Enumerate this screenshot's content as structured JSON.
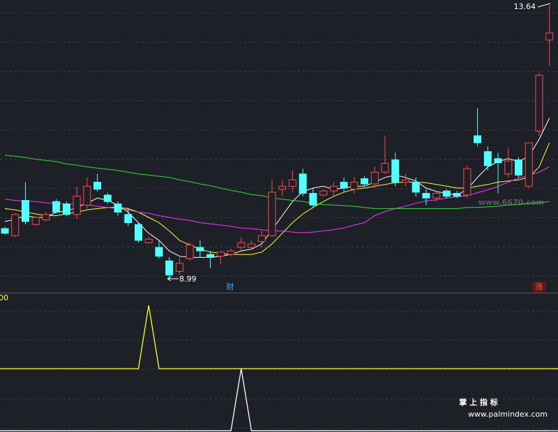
{
  "chart_data": {
    "type": "candlestick",
    "up_color": "#ff4a4a",
    "down_color": "#54ffff",
    "ylim": [
      8.75,
      13.73
    ],
    "candles": {
      "open": [
        9.84,
        9.72,
        10.32,
        9.91,
        9.99,
        10.3,
        10.26,
        10.08,
        10.24,
        10.63,
        10.41,
        10.26,
        10.08,
        9.91,
        9.6,
        9.52,
        9.29,
        9.11,
        9.33,
        9.52,
        9.4,
        9.37,
        9.4,
        9.52,
        9.52,
        9.62,
        9.72,
        10.51,
        10.56,
        10.77,
        10.44,
        10.41,
        10.48,
        10.63,
        10.51,
        10.69,
        10.6,
        10.8,
        11.01,
        10.63,
        10.63,
        10.44,
        10.36,
        10.48,
        10.44,
        10.41,
        11.42,
        11.15,
        11.03,
        10.77,
        11.01,
        10.56,
        11.5,
        13.05
      ],
      "high": [
        9.87,
        10.1,
        10.63,
        10.06,
        10.12,
        10.34,
        10.3,
        10.56,
        10.71,
        10.77,
        10.45,
        10.3,
        10.18,
        9.94,
        9.7,
        9.64,
        9.35,
        9.35,
        9.6,
        9.64,
        9.46,
        9.46,
        9.5,
        9.7,
        9.64,
        9.8,
        10.67,
        10.67,
        10.83,
        10.86,
        10.53,
        10.51,
        10.63,
        10.71,
        10.71,
        10.73,
        10.89,
        11.42,
        11.13,
        10.77,
        10.71,
        10.51,
        10.48,
        10.51,
        10.48,
        10.91,
        11.89,
        11.24,
        11.13,
        11.22,
        11.05,
        11.3,
        12.49,
        13.64
      ],
      "low": [
        9.74,
        9.7,
        9.91,
        9.89,
        9.96,
        10.1,
        10.05,
        10.0,
        10.18,
        10.47,
        10.26,
        10.06,
        9.88,
        9.6,
        9.58,
        9.33,
        8.99,
        9.05,
        9.29,
        9.35,
        9.17,
        9.23,
        9.37,
        9.46,
        9.48,
        9.52,
        9.7,
        10.39,
        10.47,
        10.39,
        10.2,
        10.39,
        10.39,
        10.47,
        10.44,
        10.56,
        10.53,
        10.77,
        10.56,
        10.56,
        10.39,
        10.24,
        10.3,
        10.36,
        10.36,
        10.36,
        11.24,
        10.83,
        10.44,
        10.71,
        10.71,
        10.53,
        11.42,
        12.61
      ],
      "close": [
        9.76,
        10.08,
        9.96,
        10.03,
        10.08,
        10.12,
        10.08,
        10.39,
        10.56,
        10.51,
        10.3,
        10.12,
        9.94,
        9.64,
        9.66,
        9.37,
        9.05,
        9.25,
        9.56,
        9.46,
        9.35,
        9.44,
        9.46,
        9.6,
        9.58,
        9.72,
        10.46,
        10.56,
        10.67,
        10.44,
        10.24,
        10.48,
        10.56,
        10.53,
        10.63,
        10.6,
        10.8,
        10.95,
        10.63,
        10.67,
        10.46,
        10.36,
        10.44,
        10.39,
        10.39,
        10.86,
        11.3,
        10.91,
        10.96,
        10.99,
        10.75,
        11.3,
        12.45,
        13.17
      ]
    },
    "moving_averages": [
      {
        "color": "#ffffff",
        "values": [
          9.96,
          10.0,
          10.06,
          10.03,
          10.03,
          10.12,
          10.14,
          10.2,
          10.27,
          10.36,
          10.32,
          10.24,
          10.12,
          9.94,
          9.76,
          9.64,
          9.46,
          9.37,
          9.35,
          9.35,
          9.35,
          9.37,
          9.4,
          9.46,
          9.49,
          9.58,
          9.82,
          10.06,
          10.3,
          10.47,
          10.53,
          10.56,
          10.51,
          10.53,
          10.56,
          10.56,
          10.63,
          10.71,
          10.75,
          10.71,
          10.65,
          10.53,
          10.47,
          10.44,
          10.41,
          10.51,
          10.71,
          10.89,
          10.98,
          11.03,
          10.98,
          11.07,
          11.36,
          11.72
        ]
      },
      {
        "color": "#ffff33",
        "values": [
          10.18,
          10.16,
          10.12,
          10.09,
          10.06,
          10.06,
          10.09,
          10.12,
          10.16,
          10.18,
          10.2,
          10.2,
          10.18,
          10.12,
          10.03,
          9.94,
          9.8,
          9.64,
          9.56,
          9.49,
          9.44,
          9.42,
          9.4,
          9.4,
          9.4,
          9.44,
          9.58,
          9.76,
          9.94,
          10.09,
          10.2,
          10.3,
          10.39,
          10.46,
          10.51,
          10.53,
          10.56,
          10.59,
          10.62,
          10.63,
          10.63,
          10.62,
          10.59,
          10.56,
          10.53,
          10.53,
          10.56,
          10.59,
          10.63,
          10.65,
          10.67,
          10.71,
          10.89,
          11.3
        ]
      },
      {
        "color": "#ff33ff",
        "values": [
          10.34,
          10.32,
          10.31,
          10.3,
          10.28,
          10.27,
          10.26,
          10.25,
          10.24,
          10.22,
          10.2,
          10.18,
          10.16,
          10.12,
          10.1,
          10.06,
          10.03,
          10.0,
          9.98,
          9.94,
          9.92,
          9.9,
          9.88,
          9.85,
          9.84,
          9.82,
          9.8,
          9.8,
          9.78,
          9.77,
          9.78,
          9.8,
          9.82,
          9.85,
          9.9,
          9.94,
          10.06,
          10.13,
          10.18,
          10.22,
          10.27,
          10.31,
          10.33,
          10.36,
          10.38,
          10.4,
          10.45,
          10.5,
          10.56,
          10.63,
          10.7,
          10.74,
          10.8,
          10.89
        ]
      },
      {
        "color": "#33dd33",
        "values": [
          11.09,
          11.07,
          11.05,
          11.02,
          11.0,
          10.98,
          10.94,
          10.92,
          10.89,
          10.87,
          10.85,
          10.83,
          10.8,
          10.77,
          10.75,
          10.73,
          10.71,
          10.67,
          10.64,
          10.6,
          10.57,
          10.53,
          10.49,
          10.46,
          10.42,
          10.4,
          10.36,
          10.34,
          10.32,
          10.3,
          10.27,
          10.25,
          10.24,
          10.23,
          10.22,
          10.2,
          10.18,
          10.18,
          10.18,
          10.18,
          10.18,
          10.18,
          10.18,
          10.18,
          10.18,
          10.2,
          10.2,
          10.21,
          10.22,
          10.24,
          10.25,
          10.27,
          10.28,
          10.3
        ]
      }
    ],
    "annotations": {
      "high": "13.64",
      "low": "8.99",
      "marks": [
        {
          "text": "财",
          "color": "#4aa8ff"
        },
        {
          "text": "涨",
          "color": "#ff5555"
        }
      ]
    },
    "indicator": {
      "label": "00",
      "ylim": [
        -1.0,
        1.2
      ],
      "lines": [
        {
          "color": "#ffff33",
          "values": [
            0,
            0,
            0,
            0,
            0,
            0,
            0,
            0,
            0,
            0,
            0,
            0,
            0,
            0,
            1,
            0,
            0,
            0,
            0,
            0,
            0,
            0,
            0,
            0,
            0,
            0,
            0,
            0,
            0,
            0,
            0,
            0,
            0,
            0,
            0,
            0,
            0,
            0,
            0,
            0,
            0,
            0,
            0,
            0,
            0,
            0,
            0,
            0,
            0,
            0,
            0,
            0,
            0,
            0
          ]
        },
        {
          "color": "#ffffff",
          "values": [
            -0.98,
            -0.98,
            -0.98,
            -0.98,
            -0.98,
            -0.98,
            -0.98,
            -0.98,
            -0.98,
            -0.98,
            -0.98,
            -0.98,
            -0.98,
            -0.98,
            -0.98,
            -0.98,
            -0.98,
            -0.98,
            -0.98,
            -0.98,
            -0.98,
            -0.98,
            -0.98,
            0,
            -0.98,
            -0.98,
            -0.98,
            -0.98,
            -0.98,
            -0.98,
            -0.98,
            -0.98,
            -0.98,
            -0.98,
            -0.98,
            -0.98,
            -0.98,
            -0.98,
            -0.98,
            -0.98,
            -0.98,
            -0.98,
            -0.98,
            -0.98,
            -0.98,
            -0.98,
            -0.98,
            -0.98,
            -0.98,
            -0.98,
            -0.98,
            -0.98,
            -0.98,
            -0.98
          ]
        }
      ]
    },
    "watermarks": [
      "www.6670.com",
      "掌 上 指 标",
      "www.palmindex.com"
    ]
  }
}
